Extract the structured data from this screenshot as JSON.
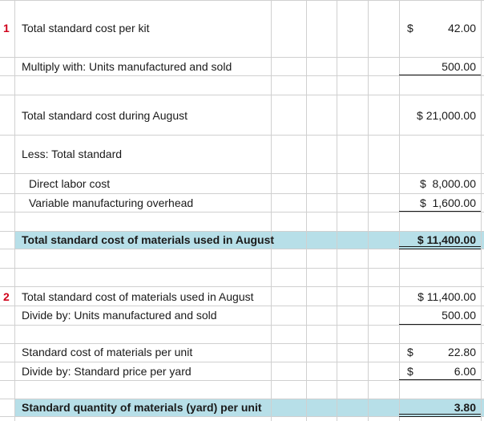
{
  "section1": {
    "number": "1",
    "total_standard_cost_per_kit": {
      "label": "Total standard cost per kit",
      "currency": "$",
      "value": "42.00"
    },
    "multiply_units": {
      "label": "Multiply with: Units manufactured and sold",
      "value": "500.00"
    },
    "total_standard_cost_august": {
      "label": "Total standard cost during August",
      "value": "$ 21,000.00"
    },
    "less_total_standard": {
      "label": "Less: Total standard"
    },
    "direct_labor": {
      "label": "Direct labor cost",
      "value": "$  8,000.00"
    },
    "variable_overhead": {
      "label": "Variable manufacturing overhead",
      "value": "$  1,600.00"
    },
    "materials_used": {
      "label": "Total standard cost of materials used in August",
      "value": "$ 11,400.00"
    }
  },
  "section2": {
    "number": "2",
    "materials_used": {
      "label": "Total standard cost of materials used in August",
      "value": "$ 11,400.00"
    },
    "divide_units": {
      "label": "Divide by: Units manufactured and sold",
      "value": "500.00"
    },
    "cost_per_unit": {
      "label": "Standard cost of materials per unit",
      "currency": "$",
      "value": "22.80"
    },
    "price_per_yard": {
      "label": "Divide by: Standard price per yard",
      "currency": "$",
      "value": "6.00"
    },
    "quantity_per_unit": {
      "label": "Standard quantity of materials (yard) per unit",
      "value": "3.80"
    }
  },
  "colors": {
    "highlight": "#b7dfe8",
    "row_number": "#d0021b",
    "gridline": "#d0d0d0"
  }
}
